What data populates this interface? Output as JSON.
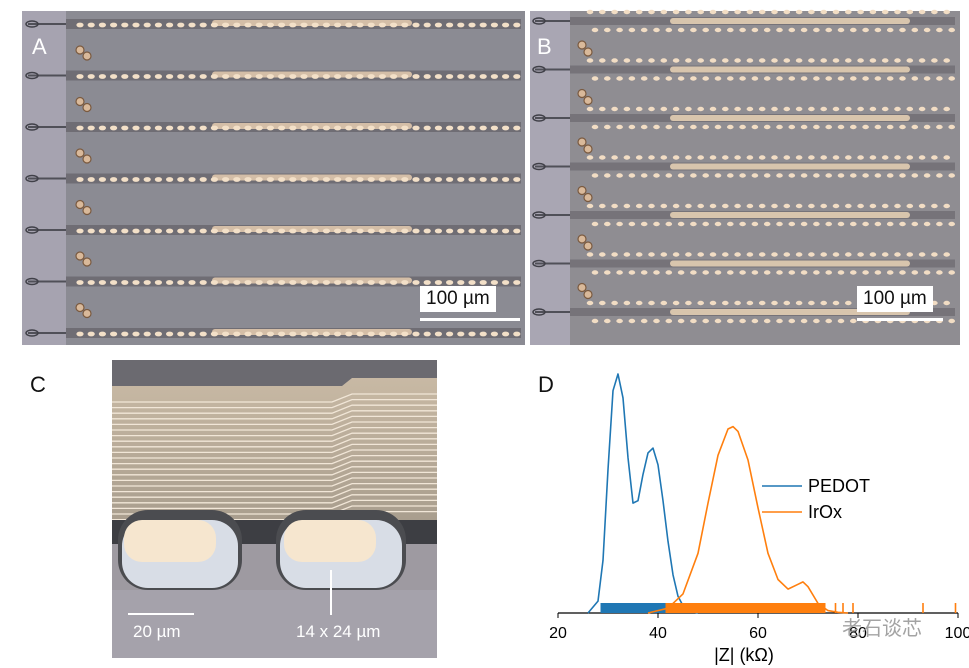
{
  "panels": {
    "a": {
      "label": "A",
      "scale_bar": "100 µm"
    },
    "b": {
      "label": "B",
      "scale_bar": "100 µm"
    },
    "c": {
      "label": "C",
      "scale_bar": "20 µm",
      "dimension_note": "14 x 24 µm"
    },
    "d": {
      "label": "D"
    }
  },
  "watermark": "老石谈芯",
  "chart_data": {
    "type": "line",
    "title": "",
    "xlabel": "|Z| (kΩ)",
    "ylabel": "",
    "xlim": [
      20,
      100
    ],
    "ylim": [
      0,
      1
    ],
    "x_ticks": [
      "20",
      "40",
      "60",
      "80",
      "100"
    ],
    "y_axis_visible": false,
    "legend_position": "center-right",
    "series": [
      {
        "name": "PEDOT",
        "color": "#1f77b4",
        "x": [
          26,
          28,
          29,
          30,
          31,
          32,
          33,
          34,
          35,
          36,
          37,
          38,
          39,
          40,
          41,
          42,
          43,
          44,
          45,
          46,
          48
        ],
        "y": [
          0.0,
          0.05,
          0.22,
          0.6,
          0.93,
          1.0,
          0.9,
          0.65,
          0.46,
          0.47,
          0.58,
          0.67,
          0.69,
          0.62,
          0.47,
          0.3,
          0.16,
          0.07,
          0.03,
          0.01,
          0.0
        ],
        "rug_range": [
          28.5,
          41.5
        ]
      },
      {
        "name": "IrOx",
        "color": "#ff7f0e",
        "x": [
          38,
          42,
          45,
          48,
          50,
          52,
          54,
          55,
          56,
          58,
          60,
          62,
          64,
          66,
          68,
          69,
          70,
          72,
          74,
          76,
          78
        ],
        "y": [
          0.0,
          0.02,
          0.08,
          0.25,
          0.46,
          0.66,
          0.77,
          0.78,
          0.76,
          0.64,
          0.44,
          0.25,
          0.14,
          0.1,
          0.12,
          0.13,
          0.11,
          0.04,
          0.01,
          0.003,
          0.0
        ],
        "rug_range": [
          41.5,
          73.5
        ],
        "outliers": [
          75.5,
          77,
          79,
          93,
          99.5
        ]
      }
    ]
  }
}
